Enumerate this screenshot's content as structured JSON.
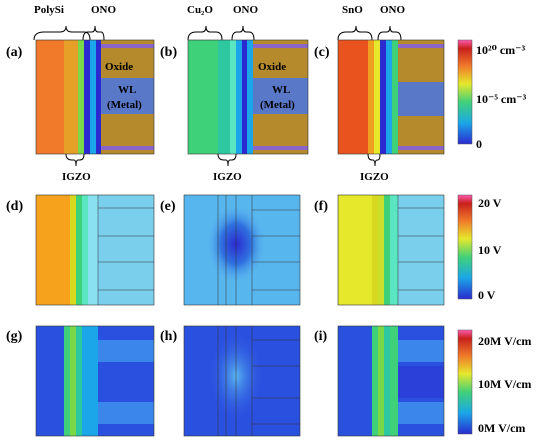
{
  "panels": [
    {
      "id": "a",
      "label": "(a)",
      "top_labels": [
        "PolySi",
        "ONO"
      ],
      "bottom_label": "IGZO",
      "region_labels": [
        "Oxide",
        "WL",
        "(Metal)"
      ]
    },
    {
      "id": "b",
      "label": "(b)",
      "top_labels": [
        "Cu₂O",
        "ONO"
      ],
      "bottom_label": "IGZO",
      "region_labels": [
        "Oxide",
        "WL",
        "(Metal)"
      ]
    },
    {
      "id": "c",
      "label": "(c)",
      "top_labels": [
        "SnO",
        "ONO"
      ],
      "bottom_label": "IGZO",
      "region_labels": []
    },
    {
      "id": "d",
      "label": "(d)"
    },
    {
      "id": "e",
      "label": "(e)"
    },
    {
      "id": "f",
      "label": "(f)"
    },
    {
      "id": "g",
      "label": "(g)"
    },
    {
      "id": "h",
      "label": "(h)"
    },
    {
      "id": "i",
      "label": "(i)"
    }
  ],
  "colorbars": [
    {
      "name": "carrier-density",
      "ticks": [
        "10²⁰ cm⁻³",
        "10⁻⁵ cm⁻³",
        "0"
      ]
    },
    {
      "name": "potential",
      "ticks": [
        "20 V",
        "10 V",
        "0 V"
      ]
    },
    {
      "name": "electric-field",
      "ticks": [
        "20M V/cm",
        "10M V/cm",
        "0M V/cm"
      ]
    }
  ],
  "colors": {
    "polysi": "#f07a2a",
    "cu2o": "#3fd07a",
    "sno": "#e8531e",
    "oxide": "#b48a2c",
    "wl_metal": "#5a78c8",
    "igzo_dark": "#2a2ad0",
    "potential_high": "#f6a21c",
    "potential_mid": "#e6e82c",
    "field_low": "#2a50e0"
  }
}
